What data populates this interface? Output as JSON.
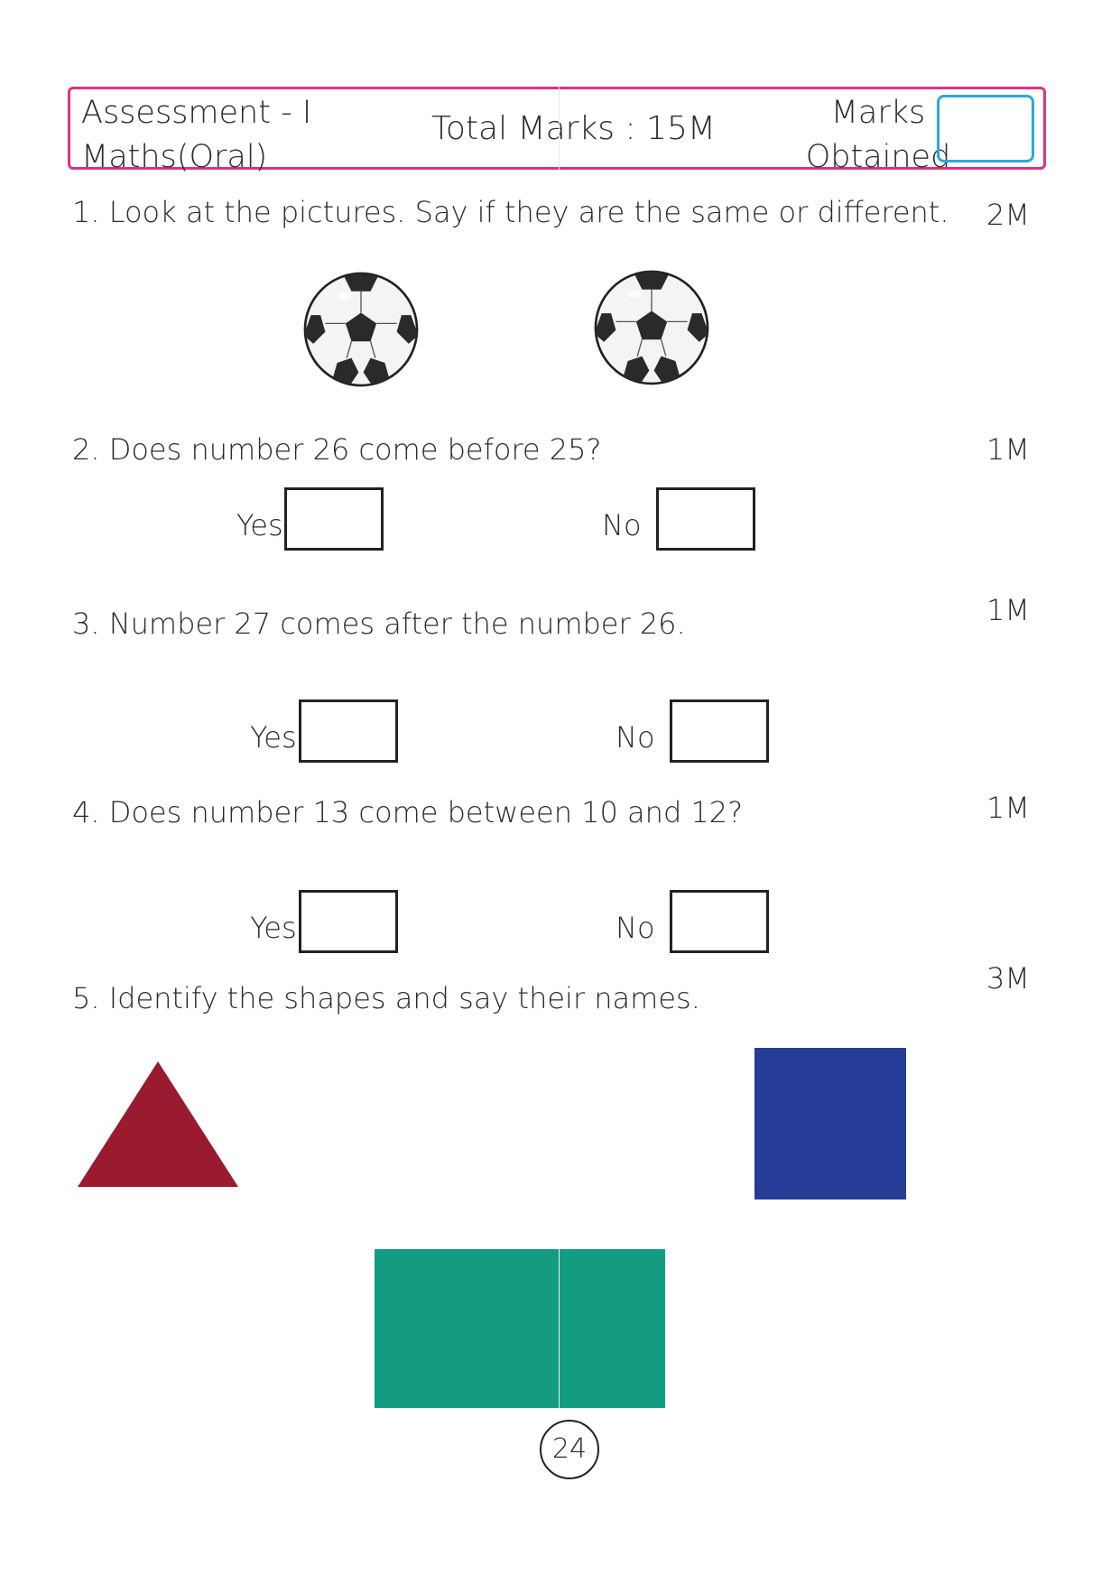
{
  "header": {
    "assessment": "Assessment - I",
    "subject": "Maths(Oral)",
    "total_marks": "Total Marks : 15M",
    "marks_label_line1": "Marks",
    "marks_label_line2": "Obtained"
  },
  "questions": [
    {
      "text": "1. Look at the pictures. Say if they are the same or different.",
      "marks": "2M"
    },
    {
      "text": "2.  Does number 26 come before 25?",
      "marks": "1M",
      "yes": "Yes",
      "no": "No"
    },
    {
      "text": "3.  Number 27 comes after the number 26.",
      "marks": "1M",
      "yes": "Yes",
      "no": "No"
    },
    {
      "text": "4.  Does number 13 come between 10 and 12?",
      "marks": "1M",
      "yes": "Yes",
      "no": "No"
    },
    {
      "text": "5.  Identify the shapes and say their names.",
      "marks": "3M"
    }
  ],
  "shapes": {
    "triangle_color": "#9a1a30",
    "square_color": "#253d96",
    "rectangle_color": "#139c82"
  },
  "footer": {
    "page_number": "24"
  }
}
